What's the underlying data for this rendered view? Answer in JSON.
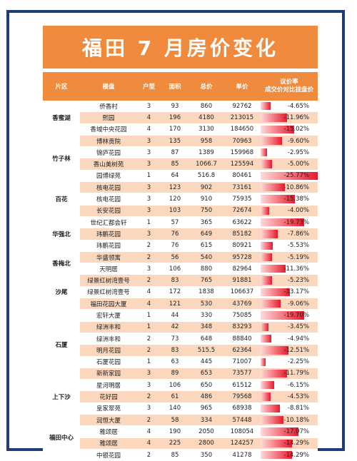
{
  "title": "福田 7 月房价变化",
  "headers": {
    "region": "片区",
    "estate": "楼盘",
    "rooms": "户型",
    "area": "面积",
    "total": "总价",
    "unit": "单价",
    "pct_line1": "议价率",
    "pct_line2": "成交价对比挂盘价"
  },
  "bar_color": "#e8192c",
  "accent_color": "#f08a3c",
  "regions": [
    {
      "name": "香蜜湖",
      "rows": [
        {
          "estate": "侨香村",
          "rooms": "3",
          "area": "93",
          "total": "860",
          "unit": "92762",
          "pct": "-4.65%",
          "value": -4.65
        },
        {
          "estate": "熙园",
          "rooms": "4",
          "area": "196",
          "total": "4180",
          "unit": "213015",
          "pct": "-11.96%",
          "value": -11.96
        },
        {
          "estate": "香域中央花园",
          "rooms": "4",
          "area": "170",
          "total": "3130",
          "unit": "184650",
          "pct": "-15.02%",
          "value": -15.02
        }
      ]
    },
    {
      "name": "竹子林",
      "rows": [
        {
          "estate": "博林贡院",
          "rooms": "3",
          "area": "135",
          "total": "958",
          "unit": "70963",
          "pct": "-9.60%",
          "value": -9.6
        },
        {
          "estate": "锦庐花园",
          "rooms": "3",
          "area": "87",
          "total": "1389",
          "unit": "159968",
          "pct": "-2.95%",
          "value": -2.95
        },
        {
          "estate": "香山美树苑",
          "rooms": "3",
          "area": "85",
          "total": "1066.7",
          "unit": "125594",
          "pct": "-5.00%",
          "value": -5.0
        },
        {
          "estate": "园博绿苑",
          "rooms": "1",
          "area": "64",
          "total": "516.8",
          "unit": "80461",
          "pct": "-25.77%",
          "value": -25.77
        }
      ]
    },
    {
      "name": "百花",
      "rows": [
        {
          "estate": "核电花园",
          "rooms": "3",
          "area": "123",
          "total": "902",
          "unit": "73161",
          "pct": "-10.86%",
          "value": -10.86
        },
        {
          "estate": "核电花园",
          "rooms": "3",
          "area": "120",
          "total": "910",
          "unit": "75935",
          "pct": "-15.38%",
          "value": -15.38
        },
        {
          "estate": "长安花园",
          "rooms": "3",
          "area": "103",
          "total": "750",
          "unit": "72674",
          "pct": "-4.00%",
          "value": -4.0
        }
      ]
    },
    {
      "name": "华强北",
      "rows": [
        {
          "estate": "世纪汇都会轩",
          "rooms": "1",
          "area": "57",
          "total": "365",
          "unit": "63622",
          "pct": "-19.73%",
          "value": -19.73
        },
        {
          "estate": "玮鹏花园",
          "rooms": "3",
          "area": "76",
          "total": "649",
          "unit": "85182",
          "pct": "-7.86%",
          "value": -7.86
        },
        {
          "estate": "玮鹏花园",
          "rooms": "2",
          "area": "76",
          "total": "615",
          "unit": "80921",
          "pct": "-5.53%",
          "value": -5.53
        }
      ]
    },
    {
      "name": "香梅北",
      "rows": [
        {
          "estate": "华盛领寓",
          "rooms": "2",
          "area": "56",
          "total": "540",
          "unit": "95728",
          "pct": "-5.19%",
          "value": -5.19
        },
        {
          "estate": "天明居",
          "rooms": "3",
          "area": "106",
          "total": "880",
          "unit": "82964",
          "pct": "-11.36%",
          "value": -11.36
        }
      ]
    },
    {
      "name": "沙尾",
      "rows": [
        {
          "estate": "绿景红树湾壹号",
          "rooms": "2",
          "area": "83",
          "total": "765",
          "unit": "91881",
          "pct": "-5.23%",
          "value": -5.23
        },
        {
          "estate": "绿景红树湾壹号",
          "rooms": "4",
          "area": "172",
          "total": "1838",
          "unit": "106637",
          "pct": "-13.17%",
          "value": -13.17
        },
        {
          "estate": "福田花园大厦",
          "rooms": "4",
          "area": "121",
          "total": "530",
          "unit": "43769",
          "pct": "-9.06%",
          "value": -9.06
        }
      ]
    },
    {
      "name": "石厦",
      "rows": [
        {
          "estate": "宏轩大厦",
          "rooms": "1",
          "area": "44",
          "total": "330",
          "unit": "75085",
          "pct": "-19.70%",
          "value": -19.7
        },
        {
          "estate": "绿洲丰和",
          "rooms": "1",
          "area": "42",
          "total": "348",
          "unit": "83293",
          "pct": "-3.45%",
          "value": -3.45
        },
        {
          "estate": "绿洲丰和",
          "rooms": "2",
          "area": "73",
          "total": "648",
          "unit": "88840",
          "pct": "-4.94%",
          "value": -4.94
        },
        {
          "estate": "明月花园",
          "rooms": "2",
          "area": "83",
          "total": "515.5",
          "unit": "62364",
          "pct": "-12.51%",
          "value": -12.51
        },
        {
          "estate": "石厦花园",
          "rooms": "1",
          "area": "63",
          "total": "445",
          "unit": "71007",
          "pct": "-2.25%",
          "value": -2.25
        },
        {
          "estate": "新新家园",
          "rooms": "3",
          "area": "89",
          "total": "653",
          "unit": "73577",
          "pct": "-11.79%",
          "value": -11.79
        }
      ]
    },
    {
      "name": "上下沙",
      "rows": [
        {
          "estate": "星河明居",
          "rooms": "3",
          "area": "106",
          "total": "650",
          "unit": "61512",
          "pct": "-6.15%",
          "value": -6.15
        },
        {
          "estate": "花好园",
          "rooms": "2",
          "area": "61",
          "total": "486",
          "unit": "79568",
          "pct": "-4.53%",
          "value": -4.53
        },
        {
          "estate": "皇家翠苑",
          "rooms": "3",
          "area": "140",
          "total": "965",
          "unit": "68938",
          "pct": "-8.81%",
          "value": -8.81
        }
      ]
    },
    {
      "name": "福田中心",
      "rows": [
        {
          "estate": "润恒大厦",
          "rooms": "2",
          "area": "58",
          "total": "334",
          "unit": "57448",
          "pct": "-10.18%",
          "value": -10.18
        },
        {
          "estate": "雅颂居",
          "rooms": "4",
          "area": "190",
          "total": "2050",
          "unit": "108054",
          "pct": "-17.07%",
          "value": -17.07
        },
        {
          "estate": "雅颂居",
          "rooms": "4",
          "area": "225",
          "total": "2800",
          "unit": "124257",
          "pct": "-14.29%",
          "value": -14.29
        },
        {
          "estate": "中银花园",
          "rooms": "2",
          "area": "85",
          "total": "350",
          "unit": "41278",
          "pct": "-14.29%",
          "value": -14.29
        }
      ]
    }
  ]
}
